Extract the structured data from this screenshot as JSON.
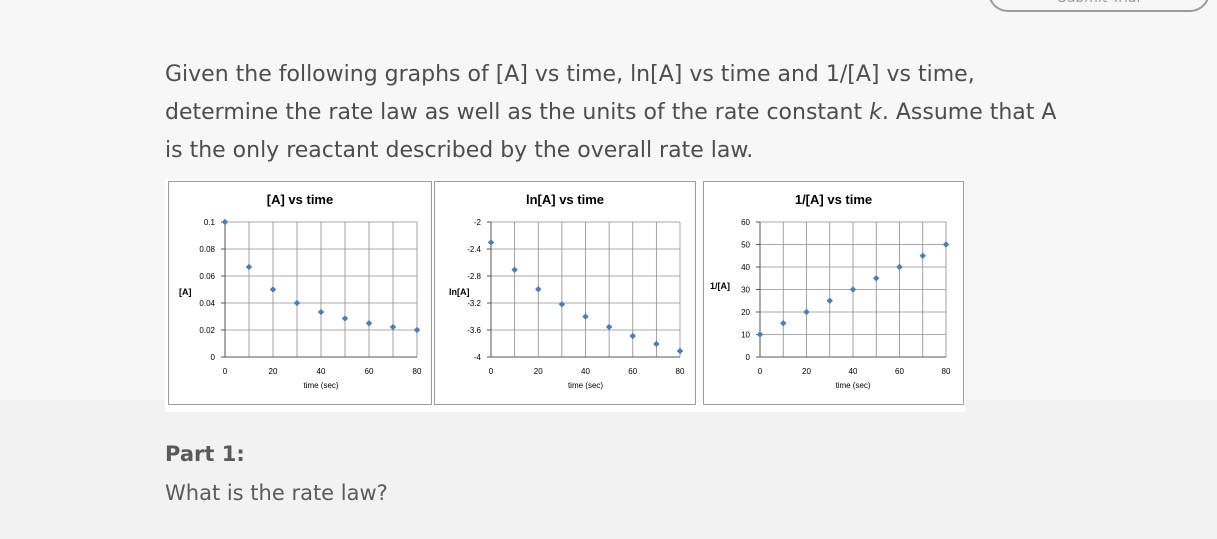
{
  "header": {
    "submit_label": "Submit Trial"
  },
  "question": {
    "line1": "Given the following graphs of [A] vs time, ln[A] vs time and 1/[A] vs time,",
    "line2_pre": "determine the rate law as well as the units of the rate constant ",
    "line2_k": "k",
    "line2_post": ".  Assume that A",
    "line3": "is the only reactant described by the overall rate law."
  },
  "part1": {
    "heading": "Part 1:",
    "prompt": "What is the rate law?"
  },
  "colors": {
    "marker": "#4a7ebb",
    "grid": "#8c8c8c"
  },
  "chart_data": [
    {
      "type": "scatter",
      "title": "[A] vs time",
      "xlabel": "time (sec)",
      "ylabel": "[A]",
      "xlim": [
        0,
        80
      ],
      "ylim": [
        0,
        0.1
      ],
      "xticks": [
        0,
        20,
        40,
        60,
        80
      ],
      "yticks": [
        0,
        0.02,
        0.04,
        0.06,
        0.08,
        0.1
      ],
      "ytick_labels": [
        "0",
        "0.02",
        "0.04",
        "0.06",
        "0.08",
        "0.1"
      ],
      "grid": true,
      "x": [
        0,
        10,
        20,
        30,
        40,
        50,
        60,
        70,
        80
      ],
      "y": [
        0.1,
        0.0667,
        0.05,
        0.04,
        0.0333,
        0.0286,
        0.025,
        0.0222,
        0.02
      ]
    },
    {
      "type": "scatter",
      "title": "ln[A] vs time",
      "xlabel": "time (sec)",
      "ylabel": "ln[A]",
      "xlim": [
        0,
        80
      ],
      "ylim": [
        -4,
        -2
      ],
      "xticks": [
        0,
        20,
        40,
        60,
        80
      ],
      "yticks": [
        -4,
        -3.6,
        -3.2,
        -2.8,
        -2.4,
        -2
      ],
      "ytick_labels": [
        "-4",
        "-3.6",
        "-3.2",
        "-2.8",
        "-2.4",
        "-2"
      ],
      "grid": true,
      "x": [
        0,
        10,
        20,
        30,
        40,
        50,
        60,
        70,
        80
      ],
      "y": [
        -2.303,
        -2.708,
        -2.996,
        -3.219,
        -3.401,
        -3.555,
        -3.689,
        -3.807,
        -3.912
      ]
    },
    {
      "type": "scatter",
      "title": "1/[A] vs time",
      "xlabel": "time (sec)",
      "ylabel": "1/[A]",
      "xlim": [
        0,
        80
      ],
      "ylim": [
        0,
        60
      ],
      "xticks": [
        0,
        20,
        40,
        60,
        80
      ],
      "yticks": [
        0,
        10,
        20,
        30,
        40,
        50,
        60
      ],
      "ytick_labels": [
        "0",
        "10",
        "20",
        "30",
        "40",
        "50",
        "60"
      ],
      "grid": true,
      "x": [
        0,
        10,
        20,
        30,
        40,
        50,
        60,
        70,
        80
      ],
      "y": [
        10,
        15,
        20,
        25,
        30,
        35,
        40,
        45,
        50
      ]
    }
  ]
}
